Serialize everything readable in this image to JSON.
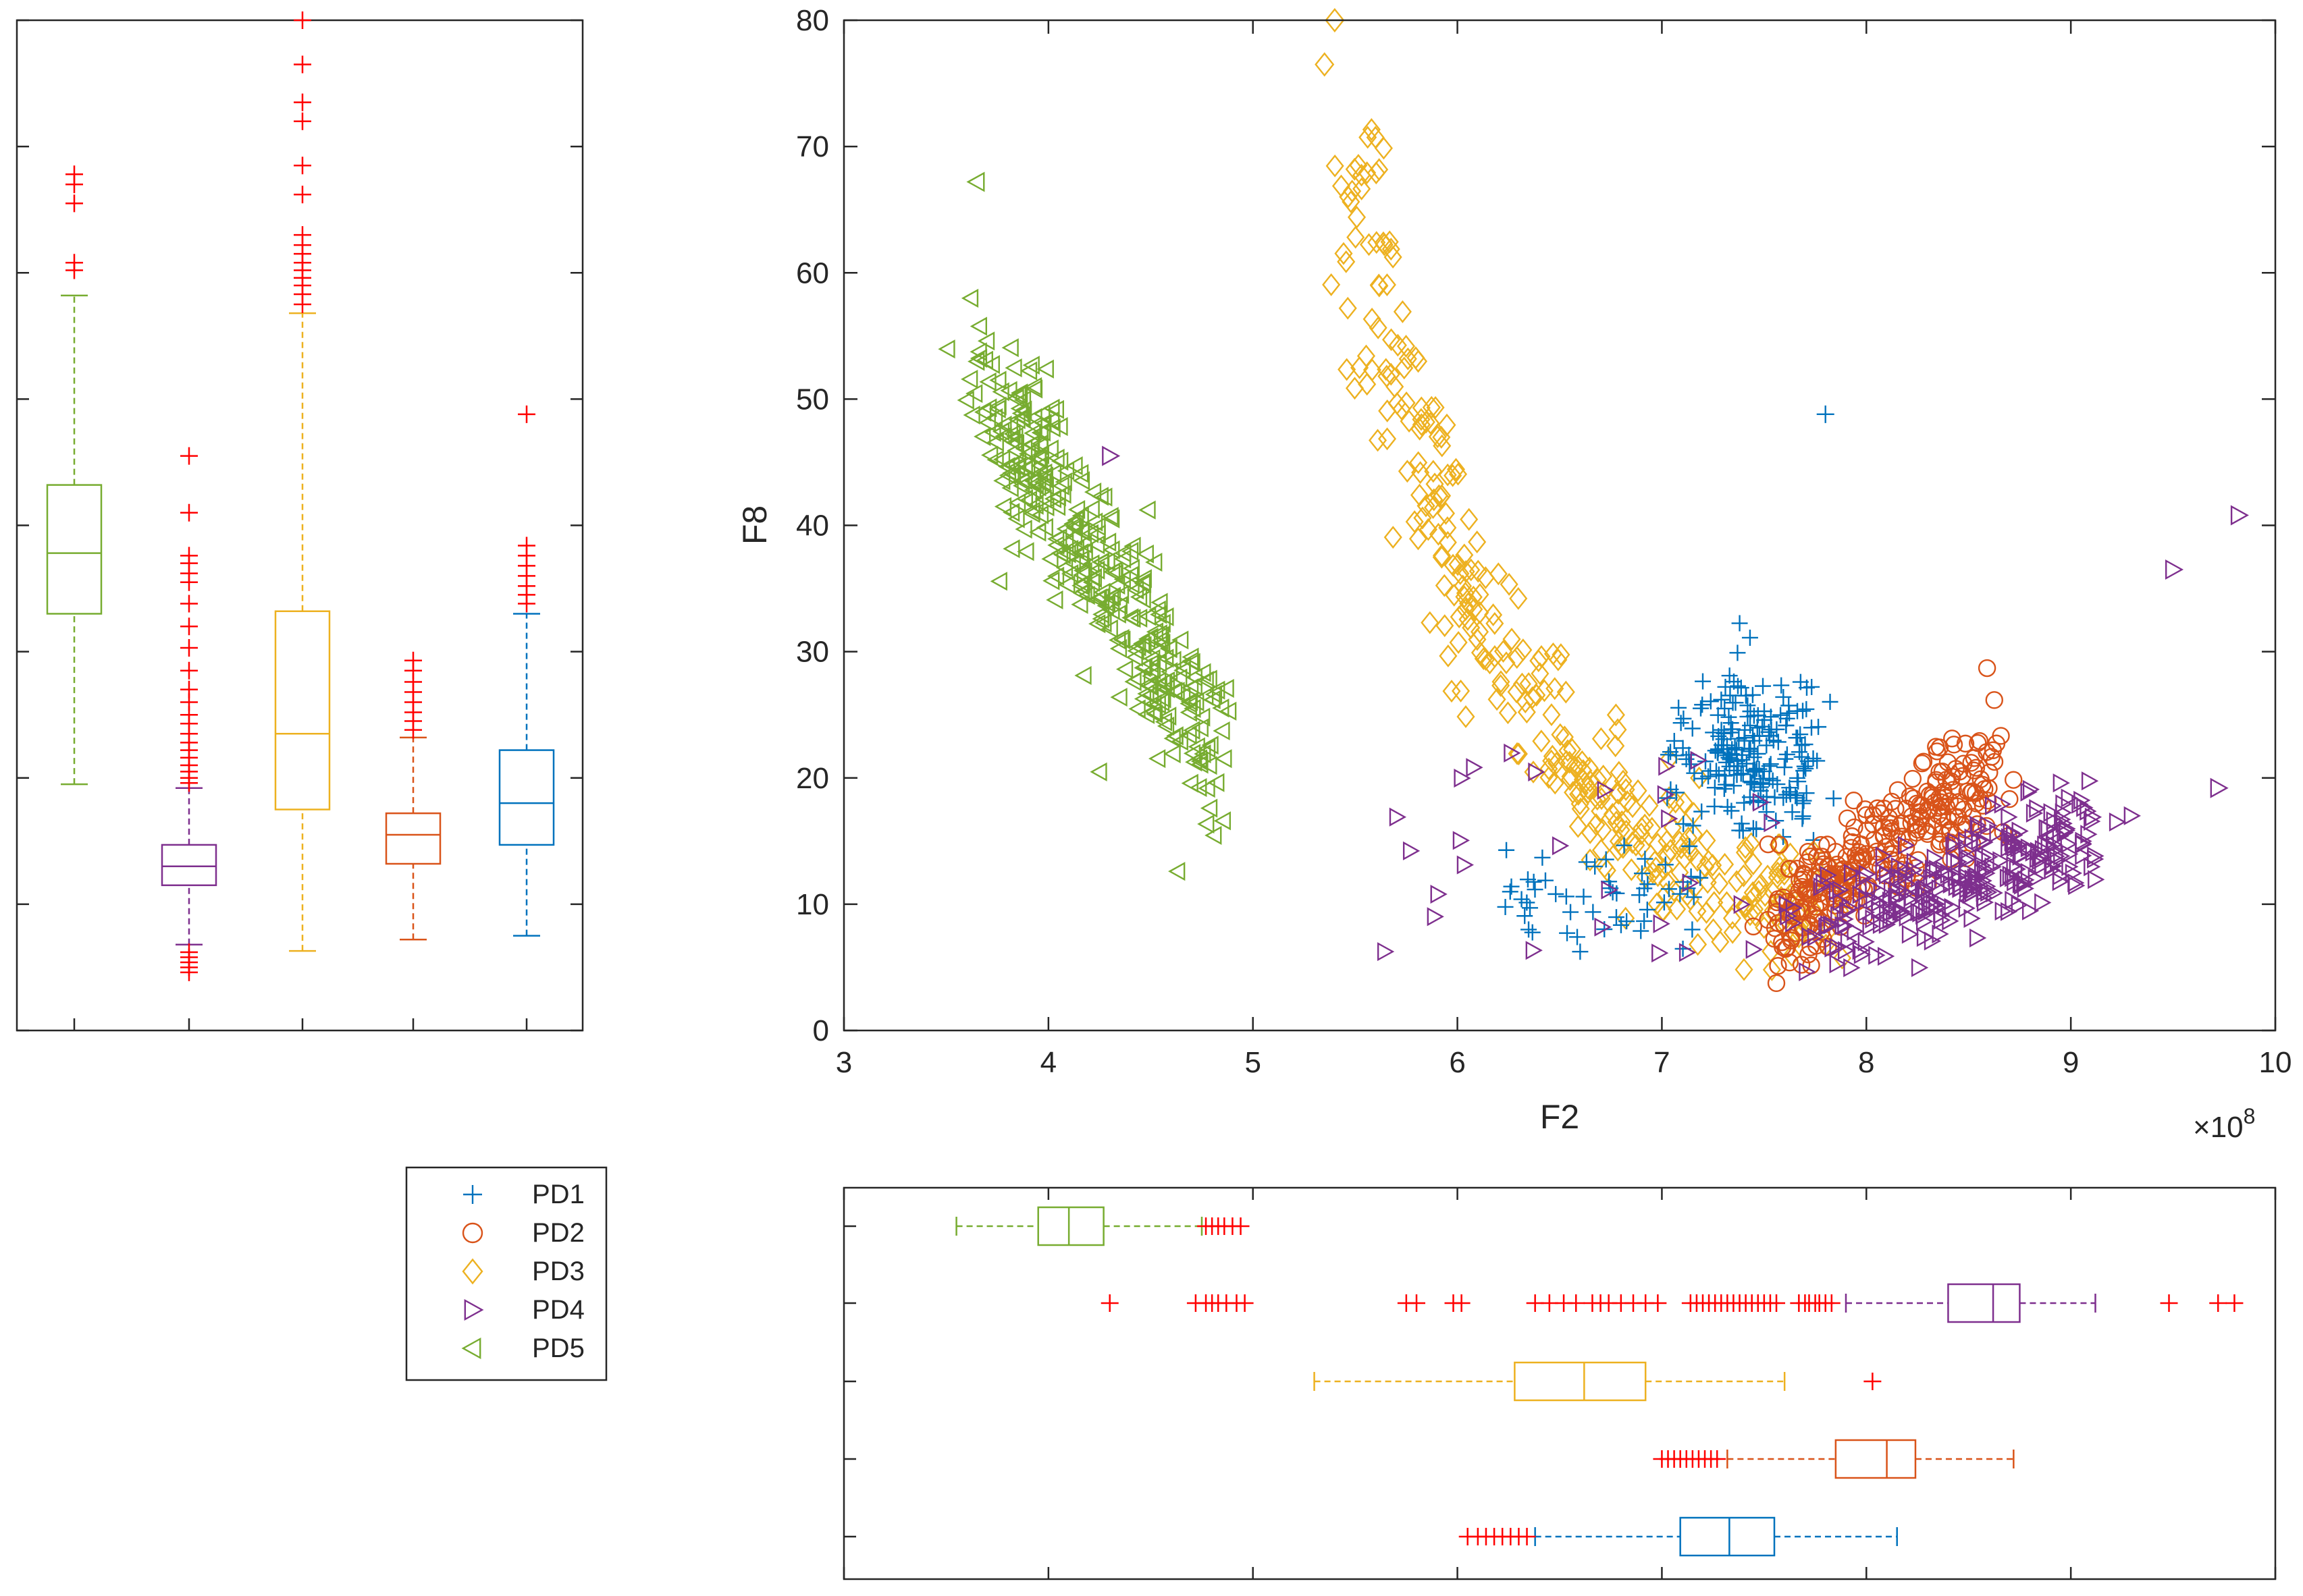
{
  "colors": {
    "PD1": "#0072BD",
    "PD2": "#D95319",
    "PD3": "#EDB120",
    "PD4": "#7E2F8E",
    "PD5": "#77AC30",
    "outlier": "#FF0000",
    "axis": "#262626"
  },
  "chart_data": [
    {
      "id": "scatter",
      "type": "scatter",
      "xlabel": "F2",
      "ylabel": "F8",
      "x_exponent_label": "×10",
      "x_exponent_power": "8",
      "xlim": [
        3,
        10
      ],
      "ylim": [
        0,
        80
      ],
      "xticks": [
        "3",
        "4",
        "5",
        "6",
        "7",
        "8",
        "9",
        "10"
      ],
      "yticks": [
        "0",
        "10",
        "20",
        "30",
        "40",
        "50",
        "60",
        "70",
        "80"
      ],
      "series": [
        {
          "name": "PD1",
          "marker": "plus",
          "cluster": {
            "x": [
              7.1,
              7.9
            ],
            "y": [
              10,
              36
            ],
            "n": 260
          }
        },
        {
          "name": "PD2",
          "marker": "circle",
          "cluster": {
            "x": [
              7.5,
              8.7
            ],
            "y": [
              8,
              28
            ],
            "n": 300
          }
        },
        {
          "name": "PD3",
          "marker": "diamond",
          "cluster": {
            "x": [
              5.4,
              8.0
            ],
            "y": [
              6,
              80
            ],
            "n": 360
          }
        },
        {
          "name": "PD4",
          "marker": "triangle-right",
          "cluster": {
            "x": [
              7.7,
              9.1
            ],
            "y": [
              5,
              24
            ],
            "n": 300
          }
        },
        {
          "name": "PD5",
          "marker": "triangle-left",
          "cluster": {
            "x": [
              3.6,
              4.9
            ],
            "y": [
              17,
              67
            ],
            "n": 360
          }
        }
      ],
      "notable_points": [
        {
          "series": "PD1",
          "x": 7.8,
          "y": 48.8
        },
        {
          "series": "PD3",
          "x": 5.4,
          "y": 80
        },
        {
          "series": "PD3",
          "x": 5.35,
          "y": 76.5
        },
        {
          "series": "PD4",
          "x": 9.82,
          "y": 40.8
        },
        {
          "series": "PD4",
          "x": 9.5,
          "y": 36.5
        },
        {
          "series": "PD4",
          "x": 9.72,
          "y": 19.2
        },
        {
          "series": "PD4",
          "x": 4.3,
          "y": 45.5
        },
        {
          "series": "PD5",
          "x": 3.65,
          "y": 67.2
        }
      ]
    },
    {
      "id": "boxplot-f8",
      "type": "boxplot",
      "orientation": "vertical",
      "axis_variable": "F8",
      "ylim": [
        0,
        80
      ],
      "groups": [
        {
          "name": "PD5",
          "q1": 33,
          "median": 37.8,
          "q3": 43.2,
          "whisker_low": 19.5,
          "whisker_high": 58.2,
          "outliers": [
            60.2,
            60.8,
            65.5,
            67,
            67.8
          ]
        },
        {
          "name": "PD4",
          "q1": 11.5,
          "median": 13,
          "q3": 14.7,
          "whisker_low": 6.8,
          "whisker_high": 19.2,
          "outliers": [
            4.6,
            5,
            5.4,
            5.8,
            6.2,
            19.6,
            20,
            20.5,
            21,
            21.6,
            22.2,
            22.8,
            23.5,
            24.3,
            25,
            26,
            27,
            28.5,
            30.3,
            32,
            33.8,
            35.5,
            36.2,
            37,
            37.6,
            41,
            45.5
          ]
        },
        {
          "name": "PD3",
          "q1": 17.5,
          "median": 23.5,
          "q3": 33.2,
          "whisker_low": 6.3,
          "whisker_high": 56.8,
          "outliers": [
            57.5,
            58.3,
            59,
            59.6,
            60.2,
            60.8,
            61.5,
            62.2,
            63,
            66.2,
            68.5,
            72,
            73.5,
            76.5,
            80
          ]
        },
        {
          "name": "PD2",
          "q1": 13.2,
          "median": 15.5,
          "q3": 17.2,
          "whisker_low": 7.2,
          "whisker_high": 23.2,
          "outliers": [
            23.8,
            24.5,
            25.2,
            26,
            26.8,
            27.6,
            28.5,
            29.3
          ]
        },
        {
          "name": "PD1",
          "q1": 14.7,
          "median": 18,
          "q3": 22.2,
          "whisker_low": 7.5,
          "whisker_high": 33,
          "outliers": [
            33.8,
            34.5,
            35.2,
            36,
            36.8,
            37.6,
            38.4,
            48.8
          ]
        }
      ]
    },
    {
      "id": "boxplot-f2",
      "type": "boxplot",
      "orientation": "horizontal",
      "axis_variable": "F2",
      "xlim": [
        3,
        10
      ],
      "groups": [
        {
          "name": "PD5",
          "q1": 3.95,
          "median": 4.1,
          "q3": 4.27,
          "whisker_low": 3.55,
          "whisker_high": 4.75,
          "outliers": [
            4.77,
            4.8,
            4.83,
            4.86,
            4.9,
            4.94
          ]
        },
        {
          "name": "PD4",
          "q1": 8.4,
          "median": 8.62,
          "q3": 8.75,
          "whisker_low": 7.9,
          "whisker_high": 9.12,
          "outliers": [
            4.3,
            4.72,
            4.77,
            4.8,
            4.83,
            4.87,
            4.92,
            4.96,
            5.75,
            5.8,
            5.98,
            6.02,
            6.38,
            6.45,
            6.52,
            6.58,
            6.66,
            6.7,
            6.74,
            6.8,
            6.86,
            6.92,
            6.98,
            7.14,
            7.17,
            7.2,
            7.23,
            7.26,
            7.29,
            7.32,
            7.35,
            7.38,
            7.41,
            7.44,
            7.47,
            7.5,
            7.53,
            7.56,
            7.67,
            7.7,
            7.72,
            7.75,
            7.77,
            7.8,
            7.83,
            9.48,
            9.72,
            9.8
          ]
        },
        {
          "name": "PD3",
          "q1": 6.28,
          "median": 6.62,
          "q3": 6.92,
          "whisker_low": 5.3,
          "whisker_high": 7.6,
          "outliers": [
            8.03
          ]
        },
        {
          "name": "PD2",
          "q1": 7.85,
          "median": 8.1,
          "q3": 8.24,
          "whisker_low": 7.32,
          "whisker_high": 8.72,
          "outliers": [
            7.0,
            7.03,
            7.06,
            7.09,
            7.12,
            7.15,
            7.18,
            7.21,
            7.24,
            7.27
          ]
        },
        {
          "name": "PD1",
          "q1": 7.09,
          "median": 7.33,
          "q3": 7.55,
          "whisker_low": 6.38,
          "whisker_high": 8.15,
          "outliers": [
            6.05,
            6.1,
            6.14,
            6.18,
            6.22,
            6.26,
            6.3,
            6.34
          ]
        }
      ]
    }
  ],
  "legend": {
    "entries": [
      {
        "series": "PD1",
        "label": "PD1",
        "marker": "plus"
      },
      {
        "series": "PD2",
        "label": "PD2",
        "marker": "circle"
      },
      {
        "series": "PD3",
        "label": "PD3",
        "marker": "diamond"
      },
      {
        "series": "PD4",
        "label": "PD4",
        "marker": "triangle-right"
      },
      {
        "series": "PD5",
        "label": "PD5",
        "marker": "triangle-left"
      }
    ]
  }
}
